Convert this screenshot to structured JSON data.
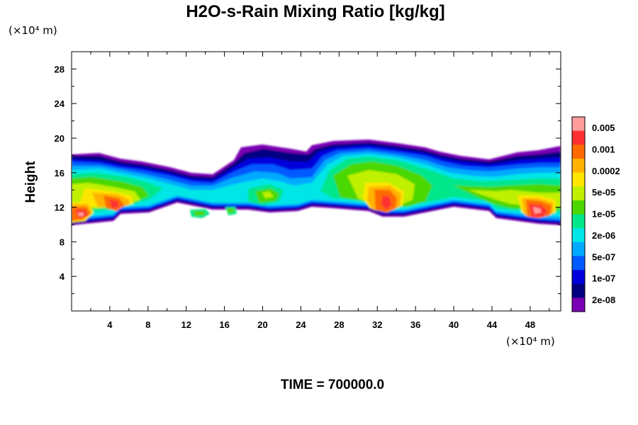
{
  "chart_data": {
    "type": "heatmap",
    "title": "H2O-s-Rain Mixing Ratio [kg/kg]",
    "xlabel": "",
    "ylabel": "Height",
    "x_unit_label": "(×10⁴ m)",
    "y_unit_label": "(×10⁴ m)",
    "xlim": [
      0,
      51.2
    ],
    "ylim": [
      0,
      30
    ],
    "x_ticks": [
      "4",
      "8",
      "12",
      "16",
      "20",
      "24",
      "28",
      "32",
      "36",
      "40",
      "44",
      "48"
    ],
    "y_ticks": [
      "4",
      "8",
      "12",
      "16",
      "20",
      "24",
      "28"
    ],
    "time_label": "TIME = 700000.0",
    "grid": false,
    "legend": "right colorbar",
    "colorbar": {
      "labels": [
        "0.005",
        "0.001",
        "0.0002",
        "5e-05",
        "1e-05",
        "2e-06",
        "5e-07",
        "1e-07",
        "2e-08"
      ],
      "colors": [
        "#ff9c9c",
        "#ff3030",
        "#ff6a00",
        "#ffb300",
        "#ffe600",
        "#bff000",
        "#4cd700",
        "#00e68a",
        "#00e6e6",
        "#00aaff",
        "#005aff",
        "#0000dd",
        "#000080",
        "#7a00b4"
      ]
    },
    "cloud_layer": {
      "base_height": 11,
      "top_height": 18,
      "max_top_height": 20.4,
      "cores": [
        {
          "x": 2,
          "height": 11.5,
          "level": "0.005"
        },
        {
          "x": 5,
          "height": 13.5,
          "level": "0.0002"
        },
        {
          "x": 33,
          "height": 13.5,
          "level": "0.0002"
        },
        {
          "x": 48,
          "height": 12,
          "level": "0.005"
        }
      ]
    }
  }
}
